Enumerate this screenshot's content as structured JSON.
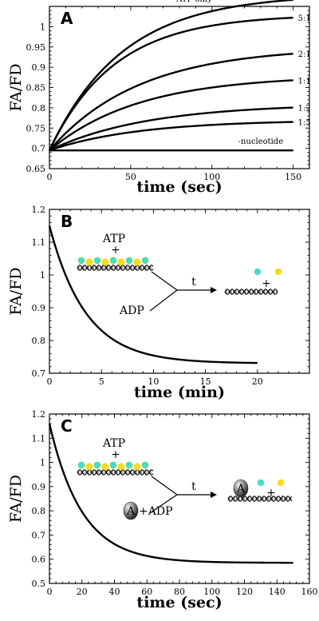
{
  "colors": {
    "cyan_bead": "#46dcc8",
    "yellow_bead": "#f5dc1e",
    "curve": "#000000"
  },
  "chart_data": [
    {
      "type": "line",
      "panel_label": "A",
      "xlabel": "time (sec)",
      "ylabel": "FA/FD",
      "xlim": [
        0,
        160
      ],
      "ylim": [
        0.65,
        1.05
      ],
      "xticks": [
        "0",
        "50",
        "100",
        "150"
      ],
      "yticks": [
        "0.65",
        "0.7",
        "0.75",
        "0.8",
        "0.85",
        "0.9",
        "0.95",
        "1"
      ],
      "series": [
        {
          "name": "ATP only",
          "start": 0.695,
          "plateau": 1.08,
          "tau": 45,
          "end_x": 150
        },
        {
          "name": "5:1",
          "start": 0.695,
          "plateau": 1.03,
          "tau": 40,
          "end_x": 150
        },
        {
          "name": "2:1",
          "start": 0.695,
          "plateau": 0.95,
          "tau": 55,
          "end_x": 150
        },
        {
          "name": "1:1",
          "start": 0.695,
          "plateau": 0.88,
          "tau": 55,
          "end_x": 150
        },
        {
          "name": "1:2",
          "start": 0.695,
          "plateau": 0.81,
          "tau": 60,
          "end_x": 150
        },
        {
          "name": "1:5",
          "start": 0.695,
          "plateau": 0.77,
          "tau": 55,
          "end_x": 150
        },
        {
          "name": "-nucleotide",
          "start": 0.695,
          "plateau": 0.695,
          "tau": 1,
          "end_x": 150
        }
      ]
    },
    {
      "type": "line",
      "panel_label": "B",
      "xlabel": "time (min)",
      "ylabel": "FA/FD",
      "xlim": [
        0,
        25
      ],
      "ylim": [
        0.7,
        1.2
      ],
      "xticks": [
        "0",
        "5",
        "10",
        "15",
        "20"
      ],
      "yticks": [
        "0.7",
        "0.8",
        "0.9",
        "1",
        "1.1",
        "1.2"
      ],
      "series": [
        {
          "start": 1.15,
          "plateau": 0.73,
          "tau": 3.5,
          "end_x": 20
        }
      ],
      "inset": {
        "top_label": "ATP",
        "plus": "+",
        "bottom_label": "ADP",
        "arrow_label": "t",
        "product_plus": "+"
      }
    },
    {
      "type": "line",
      "panel_label": "C",
      "xlabel": "time (sec)",
      "ylabel": "FA/FD",
      "xlim": [
        0,
        160
      ],
      "ylim": [
        0.5,
        1.2
      ],
      "xticks": [
        "0",
        "20",
        "40",
        "60",
        "80",
        "100",
        "120",
        "140",
        "160"
      ],
      "yticks": [
        "0.5",
        "0.6",
        "0.7",
        "0.8",
        "0.9",
        "1",
        "1.1",
        "1.2"
      ],
      "series": [
        {
          "start": 1.16,
          "plateau": 0.585,
          "tau": 20,
          "end_x": 150
        }
      ],
      "inset": {
        "top_label": "ATP",
        "plus": "+",
        "bottom_label": "+ADP",
        "enzyme_label": "A",
        "arrow_label": "t",
        "product_plus": "+"
      }
    }
  ]
}
